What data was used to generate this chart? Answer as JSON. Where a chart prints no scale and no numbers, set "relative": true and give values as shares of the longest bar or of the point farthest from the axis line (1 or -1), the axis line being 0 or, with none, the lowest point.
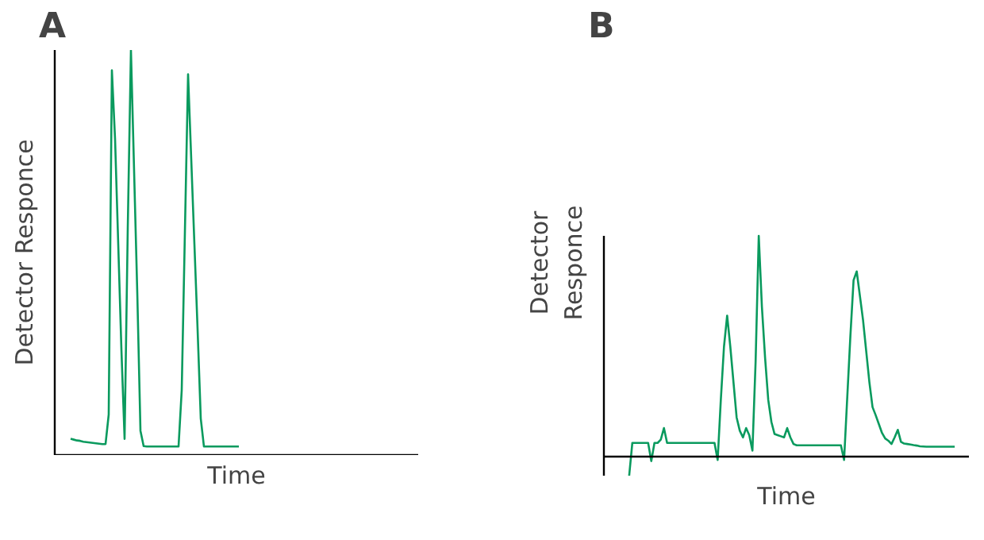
{
  "chart_data": [
    {
      "type": "line",
      "title": "A",
      "xlabel": "Time",
      "ylabel": "Detector Responce",
      "relative": true,
      "categories": [
        null,
        null,
        null,
        null,
        null,
        null,
        null,
        null,
        null,
        null,
        null,
        null,
        null,
        null,
        null,
        null,
        null,
        null,
        null,
        null,
        null,
        null,
        null,
        null,
        null,
        null,
        null,
        null,
        null,
        null,
        null,
        null,
        null,
        null,
        null,
        null,
        null,
        null,
        null,
        null,
        null,
        null,
        null,
        null,
        null,
        null,
        null,
        null,
        null,
        null,
        null,
        null,
        null,
        null,
        null,
        null,
        null,
        null,
        null,
        null,
        null,
        null,
        null,
        null,
        null,
        null,
        null,
        null,
        null,
        null,
        null,
        null,
        null,
        null,
        null,
        null,
        null,
        null,
        null,
        null,
        null,
        null,
        null,
        null,
        null,
        null,
        null,
        null,
        null,
        null,
        null,
        null,
        null,
        null,
        null,
        null,
        null,
        null,
        null,
        null,
        null,
        null,
        null,
        null,
        null,
        null,
        null,
        null,
        null,
        null,
        null,
        null,
        null,
        null,
        null
      ],
      "series": [
        {
          "color": "#0a9a5e",
          "values": [
            null,
            null,
            null,
            null,
            null,
            0.04,
            0.038,
            0.036,
            0.035,
            0.033,
            0.032,
            0.031,
            0.03,
            0.029,
            0.028,
            0.027,
            0.027,
            0.1,
            0.95,
            0.78,
            0.52,
            0.26,
            0.04,
            0.56,
            1.0,
            0.7,
            0.4,
            0.06,
            0.022,
            0.021,
            0.021,
            0.021,
            0.021,
            0.021,
            0.021,
            0.021,
            0.021,
            0.021,
            0.021,
            0.021,
            0.16,
            0.55,
            0.94,
            0.73,
            0.52,
            0.31,
            0.09,
            0.021,
            0.021,
            0.021,
            0.021,
            0.021,
            0.021,
            0.021,
            0.021,
            0.021,
            0.021,
            0.021,
            0.021,
            null,
            null,
            null,
            null,
            null,
            null,
            null,
            null,
            null,
            null,
            null,
            null,
            null,
            null,
            null,
            null,
            null,
            null,
            null,
            null,
            null,
            null,
            null,
            null,
            null,
            null,
            null,
            null,
            null,
            null,
            null,
            null,
            null,
            null,
            null,
            null,
            null,
            null,
            null,
            null,
            null,
            null,
            null,
            null,
            null,
            null,
            null,
            null,
            null,
            null,
            null,
            null,
            null,
            null,
            null,
            null
          ]
        }
      ]
    },
    {
      "type": "line",
      "title": "B",
      "xlabel": "Time",
      "ylabel": "Detector Responce",
      "relative": true,
      "categories": [
        null,
        null,
        null,
        null,
        null,
        null,
        null,
        null,
        null,
        null,
        null,
        null,
        null,
        null,
        null,
        null,
        null,
        null,
        null,
        null,
        null,
        null,
        null,
        null,
        null,
        null,
        null,
        null,
        null,
        null,
        null,
        null,
        null,
        null,
        null,
        null,
        null,
        null,
        null,
        null,
        null,
        null,
        null,
        null,
        null,
        null,
        null,
        null,
        null,
        null,
        null,
        null,
        null,
        null,
        null,
        null,
        null,
        null,
        null,
        null,
        null,
        null,
        null,
        null,
        null,
        null,
        null,
        null,
        null,
        null,
        null,
        null,
        null,
        null,
        null,
        null,
        null,
        null,
        null,
        null,
        null,
        null,
        null,
        null,
        null,
        null,
        null,
        null,
        null,
        null,
        null,
        null,
        null,
        null,
        null,
        null,
        null,
        null,
        null,
        null,
        null,
        null,
        null,
        null,
        null,
        null,
        null,
        null,
        null,
        null,
        null,
        null,
        null,
        null,
        null,
        null
      ],
      "series": [
        {
          "color": "#0a9a5e",
          "values": [
            null,
            null,
            null,
            null,
            null,
            null,
            null,
            null,
            -0.083,
            0.065,
            0.065,
            0.065,
            0.065,
            0.065,
            0.065,
            -0.017,
            0.065,
            0.065,
            0.08,
            0.132,
            0.065,
            0.065,
            0.065,
            0.065,
            0.065,
            0.065,
            0.065,
            0.065,
            0.065,
            0.065,
            0.065,
            0.065,
            0.065,
            0.065,
            0.065,
            0.065,
            -0.012,
            0.26,
            0.5,
            0.64,
            0.5,
            0.34,
            0.18,
            0.12,
            0.09,
            0.132,
            0.1,
            0.03,
            0.43,
            1.0,
            0.68,
            0.45,
            0.26,
            0.16,
            0.105,
            0.1,
            0.095,
            0.09,
            0.132,
            0.09,
            0.06,
            0.054,
            0.054,
            0.054,
            0.054,
            0.054,
            0.054,
            0.054,
            0.054,
            0.054,
            0.054,
            0.054,
            0.054,
            0.054,
            0.054,
            0.054,
            -0.012,
            0.27,
            0.55,
            0.8,
            0.84,
            0.73,
            0.62,
            0.48,
            0.34,
            0.227,
            0.19,
            0.15,
            0.11,
            0.085,
            0.075,
            0.06,
            0.09,
            0.124,
            0.07,
            0.062,
            0.06,
            0.058,
            0.055,
            0.053,
            0.05,
            0.049,
            0.048,
            0.048,
            0.048,
            0.048,
            0.048,
            0.048,
            0.048,
            0.048,
            0.048,
            0.048,
            null,
            null,
            null,
            null
          ]
        }
      ]
    }
  ]
}
